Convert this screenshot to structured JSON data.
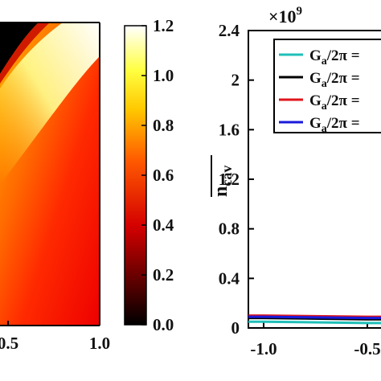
{
  "colorbar": {
    "ticks": [
      "1.2",
      "1.0",
      "0.8",
      "0.6",
      "0.4",
      "0.2",
      "0.0"
    ],
    "range": [
      0.0,
      1.2
    ],
    "colormap": "hot"
  },
  "left_panel": {
    "xticks": [
      "0.5",
      "1.0"
    ]
  },
  "right_panel": {
    "multiplier_base": "×10",
    "multiplier_exp": "9",
    "ylabel_main": "n",
    "ylabel_sub": "cav",
    "legend_prefix": "G",
    "legend_sub": "a",
    "legend_rest": "/2π ="
  },
  "chart_data": [
    {
      "type": "heatmap",
      "title": "",
      "xlabel": "",
      "ylabel": "",
      "xticks": [
        "0.5",
        "1.0"
      ],
      "colorbar_ticks": [
        0.0,
        0.2,
        0.4,
        0.6,
        0.8,
        1.0,
        1.2
      ],
      "colorbar_range": [
        0.0,
        1.2
      ],
      "colors": {
        "low": "#000000",
        "mid": "#ff0000",
        "high": "#ffffff"
      }
    },
    {
      "type": "line",
      "title": "",
      "xlabel": "",
      "ylabel": "n̄_cav",
      "ylim": [
        0,
        2400000000.0
      ],
      "yticks": [
        "0",
        "0.4",
        "0.8",
        "1.2",
        "1.6",
        "2",
        "2.4"
      ],
      "xticks": [
        "-1.0",
        "-0.5"
      ],
      "multiplier": "×10^9",
      "legend_placement": "top-right",
      "series": [
        {
          "color": "#1fbfb8",
          "x": [
            -1.0,
            -0.5
          ],
          "y": [
            50000000.0,
            40000000.0
          ]
        },
        {
          "color": "#000000",
          "x": [
            -1.0,
            -0.5
          ],
          "y": [
            80000000.0,
            70000000.0
          ]
        },
        {
          "color": "#e0141b",
          "x": [
            -1.0,
            -0.5
          ],
          "y": [
            100000000.0,
            90000000.0
          ]
        },
        {
          "color": "#1a1adc",
          "x": [
            -1.0,
            -0.5
          ],
          "y": [
            90000000.0,
            80000000.0
          ]
        }
      ]
    }
  ]
}
